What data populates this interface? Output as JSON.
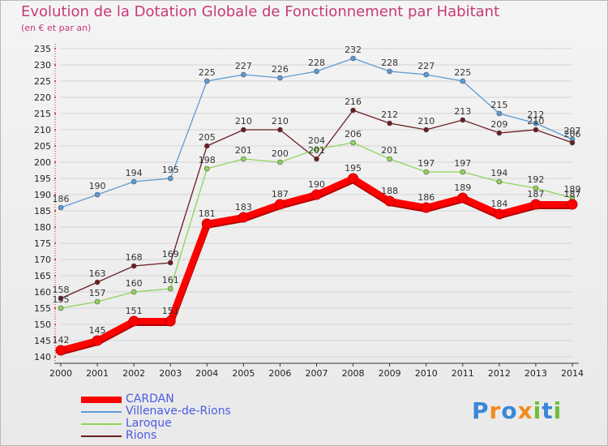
{
  "chart_data": {
    "type": "line",
    "title": "Evolution de la Dotation Globale de Fonctionnement par Habitant",
    "subtitle": "(en € et par an)",
    "xlabel": "",
    "ylabel": "",
    "categories": [
      "2000",
      "2001",
      "2002",
      "2003",
      "2004",
      "2005",
      "2006",
      "2007",
      "2008",
      "2009",
      "2010",
      "2011",
      "2012",
      "2013",
      "2014"
    ],
    "ylim": [
      140,
      235
    ],
    "ytick_step": 5,
    "grid": "horizontal",
    "legend": "bottom-left",
    "series": [
      {
        "name": "Villenave-de-Rions",
        "color": "#5b9bd5",
        "values": [
          186,
          190,
          194,
          195,
          225,
          227,
          226,
          228,
          232,
          228,
          227,
          225,
          215,
          212,
          207
        ]
      },
      {
        "name": "Rions",
        "color": "#6b1c22",
        "values": [
          158,
          163,
          168,
          169,
          205,
          210,
          210,
          201,
          216,
          212,
          210,
          213,
          209,
          210,
          206
        ]
      },
      {
        "name": "Laroque",
        "color": "#8ed55a",
        "values": [
          155,
          157,
          160,
          161,
          198,
          201,
          200,
          204,
          206,
          201,
          197,
          197,
          194,
          192,
          189
        ]
      },
      {
        "name": "CARDAN",
        "color": "#ff0000",
        "values": [
          142,
          145,
          151,
          151,
          181,
          183,
          187,
          190,
          195,
          188,
          186,
          189,
          184,
          187,
          187
        ]
      }
    ]
  },
  "legend": {
    "items": [
      {
        "label": "CARDAN",
        "color": "#ff0000"
      },
      {
        "label": "Villenave-de-Rions",
        "color": "#5b9bd5"
      },
      {
        "label": "Laroque",
        "color": "#8ed55a"
      },
      {
        "label": "Rions",
        "color": "#6b1c22"
      }
    ]
  },
  "logo": {
    "letters": [
      "P",
      "r",
      "o",
      "x",
      "i",
      "t",
      "i"
    ],
    "colors": [
      "#3a86d8",
      "#f28c1c",
      "#3a86d8",
      "#f28c1c",
      "#6cbf3a",
      "#3a86d8",
      "#6cbf3a"
    ]
  }
}
